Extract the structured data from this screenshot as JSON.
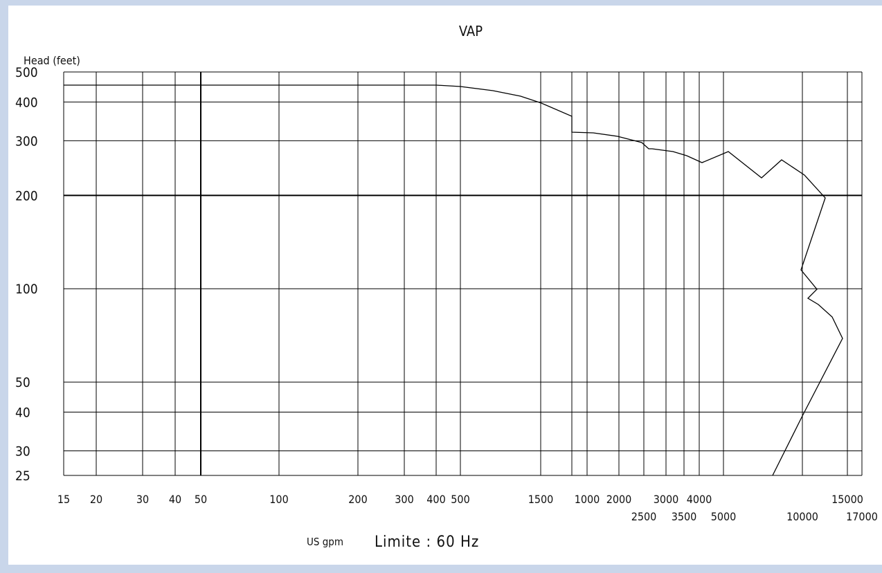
{
  "chart_data": {
    "type": "line",
    "title": "VAP",
    "ylabel": "Head (feet)",
    "xlabel_unit": "US gpm",
    "xlabel_caption": "Limite : 60 Hz",
    "y_ticks": [
      "500",
      "400",
      "300",
      "200",
      "100",
      "50",
      "40",
      "30",
      "25"
    ],
    "x_ticks_top": [
      "15",
      "20",
      "30",
      "40",
      "50",
      "100",
      "200",
      "300",
      "400",
      "500",
      "1500",
      "1000",
      "2000",
      "3000",
      "4000",
      "15000"
    ],
    "x_ticks_bottom": [
      "2500",
      "3500",
      "5000",
      "10000",
      "17000"
    ],
    "series": [
      {
        "name": "",
        "points": [
          [
            15,
            460
          ],
          [
            400,
            460
          ],
          [
            500,
            455
          ],
          [
            1000,
            430
          ],
          [
            1500,
            400
          ],
          [
            1800,
            360
          ],
          [
            1800,
            320
          ],
          [
            2200,
            318
          ],
          [
            2700,
            305
          ],
          [
            3200,
            292
          ],
          [
            3500,
            285
          ],
          [
            4300,
            270
          ],
          [
            5800,
            255
          ],
          [
            6500,
            275
          ],
          [
            9000,
            230
          ],
          [
            11000,
            262
          ],
          [
            14500,
            235
          ],
          [
            16500,
            200
          ],
          [
            15300,
            115
          ],
          [
            16200,
            98
          ],
          [
            15800,
            90
          ],
          [
            17500,
            82
          ],
          [
            19000,
            68
          ],
          [
            15000,
            35
          ],
          [
            11500,
            25
          ]
        ]
      }
    ],
    "grid": true
  }
}
